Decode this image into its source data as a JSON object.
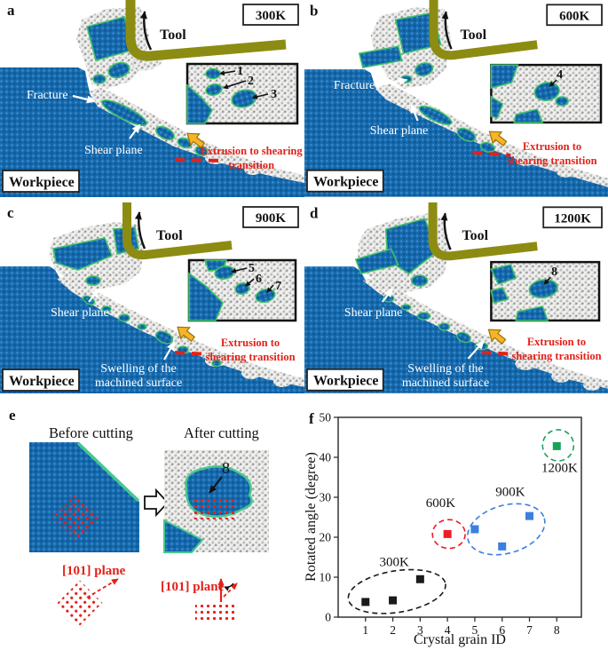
{
  "panels": [
    {
      "letter": "a",
      "temperature": "300K",
      "tool_label": "Tool",
      "fracture_label": "Fracture",
      "shear_plane_label": "Shear plane",
      "workpiece_label": "Workpiece",
      "transition_label": "Extrusion to shearing transition",
      "inset_grain_labels": [
        "1",
        "2",
        "3"
      ]
    },
    {
      "letter": "b",
      "temperature": "600K",
      "tool_label": "Tool",
      "fracture_label": "Fracture",
      "shear_plane_label": "Shear plane",
      "workpiece_label": "Workpiece",
      "transition_label": "Extrusion to shearing transition",
      "inset_grain_labels": [
        "4"
      ]
    },
    {
      "letter": "c",
      "temperature": "900K",
      "tool_label": "Tool",
      "shear_plane_label": "Shear plane",
      "workpiece_label": "Workpiece",
      "transition_label": "Extrusion to shearing transition",
      "swelling_label": "Swelling of the machined surface",
      "inset_grain_labels": [
        "5",
        "6",
        "7"
      ]
    },
    {
      "letter": "d",
      "temperature": "1200K",
      "tool_label": "Tool",
      "shear_plane_label": "Shear plane",
      "workpiece_label": "Workpiece",
      "transition_label": "Extrusion to shearing transition",
      "swelling_label": "Swelling of the machined surface",
      "inset_grain_labels": [
        "8"
      ]
    }
  ],
  "panel_e": {
    "letter": "e",
    "before_label": "Before cutting",
    "after_label": "After cutting",
    "grain_label": "8",
    "before_plane_label": "[101] plane",
    "after_plane_label": "[101] plane"
  },
  "panel_f": {
    "letter": "f"
  },
  "colors": {
    "workpiece_blue": "#1569ad",
    "grain_boundary_green": "#3ec06b",
    "tool_olive": "#8c8c12",
    "annotation_red": "#e32119",
    "extrusion_arrow_orange": "#f7b32a"
  },
  "chart_data": {
    "type": "scatter",
    "xlabel": "Crystal grain ID",
    "ylabel": "Rotated angle (degree)",
    "xlim": [
      0,
      8.9
    ],
    "ylim": [
      0,
      50
    ],
    "xticks": [
      1,
      2,
      3,
      4,
      5,
      6,
      7,
      8
    ],
    "yticks": [
      0,
      10,
      20,
      30,
      40,
      50
    ],
    "grid": false,
    "legend_position": "none",
    "series": [
      {
        "name": "300K",
        "color": "#1a1a1a",
        "points": [
          [
            1,
            3.8
          ],
          [
            2,
            4.2
          ],
          [
            3,
            9.5
          ]
        ]
      },
      {
        "name": "600K",
        "color": "#ee1c25",
        "points": [
          [
            4,
            20.8
          ]
        ]
      },
      {
        "name": "900K",
        "color": "#3b7fe0",
        "points": [
          [
            5,
            22.0
          ],
          [
            6,
            17.7
          ],
          [
            7,
            25.3
          ]
        ]
      },
      {
        "name": "1200K",
        "color": "#1ba158",
        "points": [
          [
            8,
            42.8
          ]
        ]
      }
    ],
    "clusters": [
      {
        "label": "300K",
        "color": "#1a1a1a",
        "cx": 2.15,
        "cy": 6.4,
        "rx": 1.8,
        "ry": 5.2,
        "rot": -9,
        "label_x": 2.05,
        "label_y": 12.8
      },
      {
        "label": "600K",
        "color": "#ee1c25",
        "cx": 4.05,
        "cy": 20.8,
        "rx": 0.6,
        "ry": 3.6,
        "rot": 0,
        "label_x": 3.75,
        "label_y": 27.6
      },
      {
        "label": "900K",
        "color": "#3b7fe0",
        "cx": 6.15,
        "cy": 22.0,
        "rx": 1.45,
        "ry": 6.0,
        "rot": -16,
        "label_x": 6.3,
        "label_y": 30.3
      },
      {
        "label": "1200K",
        "color": "#1ba158",
        "cx": 8.05,
        "cy": 43.0,
        "rx": 0.57,
        "ry": 3.9,
        "rot": 0,
        "label_x": 8.1,
        "label_y": 36.3
      }
    ]
  }
}
